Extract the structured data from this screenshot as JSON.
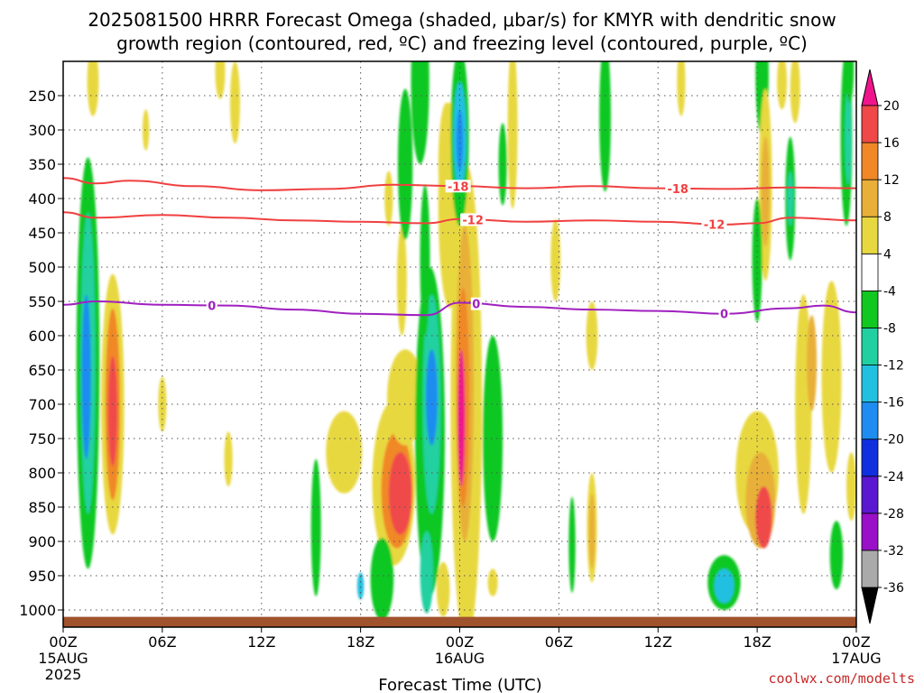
{
  "chart_data": {
    "type": "heatmap",
    "title": "2025081500 HRRR Forecast Omega (shaded, μbar/s) for KMYR with dendritic snow",
    "subtitle": "growth region (contoured, red, ºC) and freezing level (contoured, purple, ºC)",
    "xlabel": "Forecast Time (UTC)",
    "ylabel": "",
    "credit": "coolwx.com/modelts",
    "x_range_hours": [
      0,
      48
    ],
    "x_ticks": [
      {
        "hour": 0,
        "label": "00Z",
        "sub": "15AUG",
        "sub2": "2025"
      },
      {
        "hour": 6,
        "label": "06Z",
        "sub": "",
        "sub2": ""
      },
      {
        "hour": 12,
        "label": "12Z",
        "sub": "",
        "sub2": ""
      },
      {
        "hour": 18,
        "label": "18Z",
        "sub": "",
        "sub2": ""
      },
      {
        "hour": 24,
        "label": "00Z",
        "sub": "16AUG",
        "sub2": ""
      },
      {
        "hour": 30,
        "label": "06Z",
        "sub": "",
        "sub2": ""
      },
      {
        "hour": 36,
        "label": "12Z",
        "sub": "",
        "sub2": ""
      },
      {
        "hour": 42,
        "label": "18Z",
        "sub": "",
        "sub2": ""
      },
      {
        "hour": 48,
        "label": "00Z",
        "sub": "17AUG",
        "sub2": ""
      }
    ],
    "y_range_hpa": [
      200,
      1025
    ],
    "y_ticks": [
      250,
      300,
      350,
      400,
      450,
      500,
      550,
      600,
      650,
      700,
      750,
      800,
      850,
      900,
      950,
      1000
    ],
    "grid": true,
    "surface_pressure_hpa": 1010,
    "surface_color": "#a0522d",
    "colorbar": {
      "levels": [
        -36,
        -32,
        -28,
        -24,
        -20,
        -16,
        -12,
        -8,
        -4,
        4,
        8,
        12,
        16,
        20
      ],
      "labels": [
        "-36",
        "-32",
        "-28",
        "-24",
        "-20",
        "-16",
        "-12",
        "-8",
        "-4",
        "4",
        "8",
        "12",
        "16",
        "20"
      ],
      "colors": [
        "#aaaaaa",
        "#9a10c8",
        "#5a18d0",
        "#1030e0",
        "#1e8cf0",
        "#22c0e0",
        "#20d0a0",
        "#10c820",
        "#ffffff",
        "#e8d840",
        "#e8b038",
        "#f08828",
        "#f04848",
        "#f0148c"
      ],
      "under_color": "#000000",
      "over_color": "#f0148c"
    },
    "blobs": [
      {
        "t": 1.5,
        "p": 640,
        "wt": 0.7,
        "hp": 300,
        "v": -8
      },
      {
        "t": 1.5,
        "p": 640,
        "wt": 0.45,
        "hp": 220,
        "v": -12
      },
      {
        "t": 1.4,
        "p": 660,
        "wt": 0.28,
        "hp": 120,
        "v": -18
      },
      {
        "t": 3.0,
        "p": 700,
        "wt": 0.7,
        "hp": 190,
        "v": 6
      },
      {
        "t": 3.0,
        "p": 700,
        "wt": 0.45,
        "hp": 140,
        "v": 12
      },
      {
        "t": 3.0,
        "p": 710,
        "wt": 0.28,
        "hp": 80,
        "v": 18
      },
      {
        "t": 1.8,
        "p": 230,
        "wt": 0.35,
        "hp": 50,
        "v": 5
      },
      {
        "t": 5.0,
        "p": 300,
        "wt": 0.2,
        "hp": 30,
        "v": 5
      },
      {
        "t": 9.5,
        "p": 215,
        "wt": 0.3,
        "hp": 40,
        "v": 5
      },
      {
        "t": 10.4,
        "p": 260,
        "wt": 0.3,
        "hp": 60,
        "v": 5
      },
      {
        "t": 6.0,
        "p": 700,
        "wt": 0.25,
        "hp": 40,
        "v": 5
      },
      {
        "t": 10.0,
        "p": 780,
        "wt": 0.25,
        "hp": 40,
        "v": 5
      },
      {
        "t": 15.3,
        "p": 880,
        "wt": 0.3,
        "hp": 100,
        "v": -8
      },
      {
        "t": 17.0,
        "p": 770,
        "wt": 1.1,
        "hp": 60,
        "v": 5
      },
      {
        "t": 20.0,
        "p": 815,
        "wt": 1.3,
        "hp": 120,
        "v": 6
      },
      {
        "t": 20.2,
        "p": 825,
        "wt": 0.95,
        "hp": 85,
        "v": 12
      },
      {
        "t": 20.4,
        "p": 830,
        "wt": 0.7,
        "hp": 60,
        "v": 18
      },
      {
        "t": 19.3,
        "p": 955,
        "wt": 0.7,
        "hp": 60,
        "v": -8
      },
      {
        "t": 18.0,
        "p": 965,
        "wt": 0.2,
        "hp": 20,
        "v": -16
      },
      {
        "t": 20.5,
        "p": 520,
        "wt": 0.3,
        "hp": 80,
        "v": 6
      },
      {
        "t": 19.7,
        "p": 400,
        "wt": 0.25,
        "hp": 40,
        "v": 5
      },
      {
        "t": 20.7,
        "p": 350,
        "wt": 0.45,
        "hp": 110,
        "v": -8
      },
      {
        "t": 21.6,
        "p": 230,
        "wt": 0.55,
        "hp": 120,
        "v": -8
      },
      {
        "t": 20.7,
        "p": 690,
        "wt": 1.1,
        "hp": 70,
        "v": 5
      },
      {
        "t": 22.2,
        "p": 740,
        "wt": 0.9,
        "hp": 240,
        "v": -8
      },
      {
        "t": 22.3,
        "p": 700,
        "wt": 0.55,
        "hp": 160,
        "v": -12
      },
      {
        "t": 22.3,
        "p": 690,
        "wt": 0.35,
        "hp": 70,
        "v": -20
      },
      {
        "t": 22.0,
        "p": 945,
        "wt": 0.4,
        "hp": 60,
        "v": -12
      },
      {
        "t": 21.9,
        "p": 490,
        "wt": 0.3,
        "hp": 110,
        "v": -8
      },
      {
        "t": 23.0,
        "p": 970,
        "wt": 0.4,
        "hp": 40,
        "v": 5
      },
      {
        "t": 24.5,
        "p": 790,
        "wt": 0.4,
        "hp": 190,
        "v": -8
      },
      {
        "t": 24.4,
        "p": 700,
        "wt": 0.95,
        "hp": 350,
        "v": 5
      },
      {
        "t": 24.3,
        "p": 670,
        "wt": 0.55,
        "hp": 230,
        "v": 10
      },
      {
        "t": 24.2,
        "p": 690,
        "wt": 0.38,
        "hp": 160,
        "v": 15
      },
      {
        "t": 24.1,
        "p": 720,
        "wt": 0.22,
        "hp": 100,
        "v": 20
      },
      {
        "t": 23.2,
        "p": 350,
        "wt": 0.5,
        "hp": 90,
        "v": 6
      },
      {
        "t": 23.2,
        "p": 350,
        "wt": 0.25,
        "hp": 45,
        "v": 14
      },
      {
        "t": 23.4,
        "p": 410,
        "wt": 0.7,
        "hp": 150,
        "v": 5
      },
      {
        "t": 24.0,
        "p": 310,
        "wt": 0.55,
        "hp": 130,
        "v": -8
      },
      {
        "t": 24.0,
        "p": 310,
        "wt": 0.4,
        "hp": 80,
        "v": -13
      },
      {
        "t": 24.0,
        "p": 315,
        "wt": 0.2,
        "hp": 45,
        "v": -19
      },
      {
        "t": 26.0,
        "p": 750,
        "wt": 0.6,
        "hp": 150,
        "v": -8
      },
      {
        "t": 26.6,
        "p": 350,
        "wt": 0.25,
        "hp": 60,
        "v": -8
      },
      {
        "t": 27.2,
        "p": 295,
        "wt": 0.3,
        "hp": 120,
        "v": 5
      },
      {
        "t": 26.0,
        "p": 960,
        "wt": 0.3,
        "hp": 20,
        "v": 5
      },
      {
        "t": 29.8,
        "p": 490,
        "wt": 0.3,
        "hp": 60,
        "v": 5
      },
      {
        "t": 32.0,
        "p": 600,
        "wt": 0.35,
        "hp": 50,
        "v": 5
      },
      {
        "t": 32.0,
        "p": 880,
        "wt": 0.3,
        "hp": 80,
        "v": 5
      },
      {
        "t": 32.0,
        "p": 885,
        "wt": 0.18,
        "hp": 55,
        "v": 10
      },
      {
        "t": 30.8,
        "p": 905,
        "wt": 0.2,
        "hp": 70,
        "v": -8
      },
      {
        "t": 32.8,
        "p": 280,
        "wt": 0.35,
        "hp": 110,
        "v": -8
      },
      {
        "t": 37.4,
        "p": 230,
        "wt": 0.25,
        "hp": 50,
        "v": 5
      },
      {
        "t": 42.3,
        "p": 220,
        "wt": 0.4,
        "hp": 90,
        "v": -8
      },
      {
        "t": 43.5,
        "p": 230,
        "wt": 0.3,
        "hp": 40,
        "v": 5
      },
      {
        "t": 44.3,
        "p": 240,
        "wt": 0.3,
        "hp": 50,
        "v": 5
      },
      {
        "t": 42.5,
        "p": 380,
        "wt": 0.4,
        "hp": 140,
        "v": 6
      },
      {
        "t": 42.5,
        "p": 390,
        "wt": 0.25,
        "hp": 80,
        "v": 10
      },
      {
        "t": 42.0,
        "p": 490,
        "wt": 0.3,
        "hp": 90,
        "v": -8
      },
      {
        "t": 44.0,
        "p": 400,
        "wt": 0.3,
        "hp": 90,
        "v": -8
      },
      {
        "t": 44.0,
        "p": 400,
        "wt": 0.18,
        "hp": 40,
        "v": -12
      },
      {
        "t": 42.0,
        "p": 800,
        "wt": 1.3,
        "hp": 90,
        "v": 5
      },
      {
        "t": 42.2,
        "p": 840,
        "wt": 0.9,
        "hp": 70,
        "v": 10
      },
      {
        "t": 42.4,
        "p": 865,
        "wt": 0.5,
        "hp": 45,
        "v": 16
      },
      {
        "t": 40.0,
        "p": 960,
        "wt": 1.0,
        "hp": 40,
        "v": -8
      },
      {
        "t": 40.0,
        "p": 965,
        "wt": 0.6,
        "hp": 25,
        "v": -14
      },
      {
        "t": 44.8,
        "p": 700,
        "wt": 0.5,
        "hp": 160,
        "v": 5
      },
      {
        "t": 45.3,
        "p": 640,
        "wt": 0.3,
        "hp": 70,
        "v": 8
      },
      {
        "t": 46.5,
        "p": 660,
        "wt": 0.6,
        "hp": 140,
        "v": 5
      },
      {
        "t": 47.4,
        "p": 310,
        "wt": 0.35,
        "hp": 130,
        "v": -8
      },
      {
        "t": 47.5,
        "p": 310,
        "wt": 0.2,
        "hp": 70,
        "v": -12
      },
      {
        "t": 47.6,
        "p": 210,
        "wt": 0.25,
        "hp": 50,
        "v": -8
      },
      {
        "t": 47.7,
        "p": 820,
        "wt": 0.3,
        "hp": 50,
        "v": 6
      },
      {
        "t": 46.8,
        "p": 920,
        "wt": 0.4,
        "hp": 50,
        "v": -8
      }
    ],
    "isotherms": [
      {
        "label": "-18",
        "color": "#f04040",
        "points": [
          [
            0,
            370
          ],
          [
            2,
            378
          ],
          [
            4,
            374
          ],
          [
            8,
            382
          ],
          [
            12,
            388
          ],
          [
            16,
            386
          ],
          [
            20,
            380
          ],
          [
            24,
            382
          ],
          [
            28,
            385
          ],
          [
            32,
            382
          ],
          [
            36,
            385
          ],
          [
            40,
            386
          ],
          [
            44,
            384
          ],
          [
            48,
            385
          ]
        ],
        "label_hours": [
          23.9,
          37.2
        ]
      },
      {
        "label": "-12",
        "color": "#f04040",
        "points": [
          [
            0,
            420
          ],
          [
            2,
            428
          ],
          [
            6,
            424
          ],
          [
            10,
            428
          ],
          [
            14,
            432
          ],
          [
            18,
            434
          ],
          [
            22,
            436
          ],
          [
            24,
            430
          ],
          [
            28,
            434
          ],
          [
            32,
            432
          ],
          [
            36,
            434
          ],
          [
            40,
            438
          ],
          [
            42,
            436
          ],
          [
            44,
            428
          ],
          [
            48,
            432
          ]
        ],
        "label_hours": [
          24.8,
          39.4
        ]
      },
      {
        "label": "0",
        "color": "#a020c0",
        "points": [
          [
            0,
            555
          ],
          [
            2,
            550
          ],
          [
            6,
            555
          ],
          [
            10,
            556
          ],
          [
            14,
            562
          ],
          [
            18,
            568
          ],
          [
            22,
            570
          ],
          [
            24,
            552
          ],
          [
            28,
            558
          ],
          [
            32,
            562
          ],
          [
            36,
            564
          ],
          [
            40,
            568
          ],
          [
            44,
            560
          ],
          [
            46,
            556
          ],
          [
            48,
            566
          ]
        ],
        "label_hours": [
          9.0,
          25.0,
          40.0
        ]
      }
    ]
  }
}
